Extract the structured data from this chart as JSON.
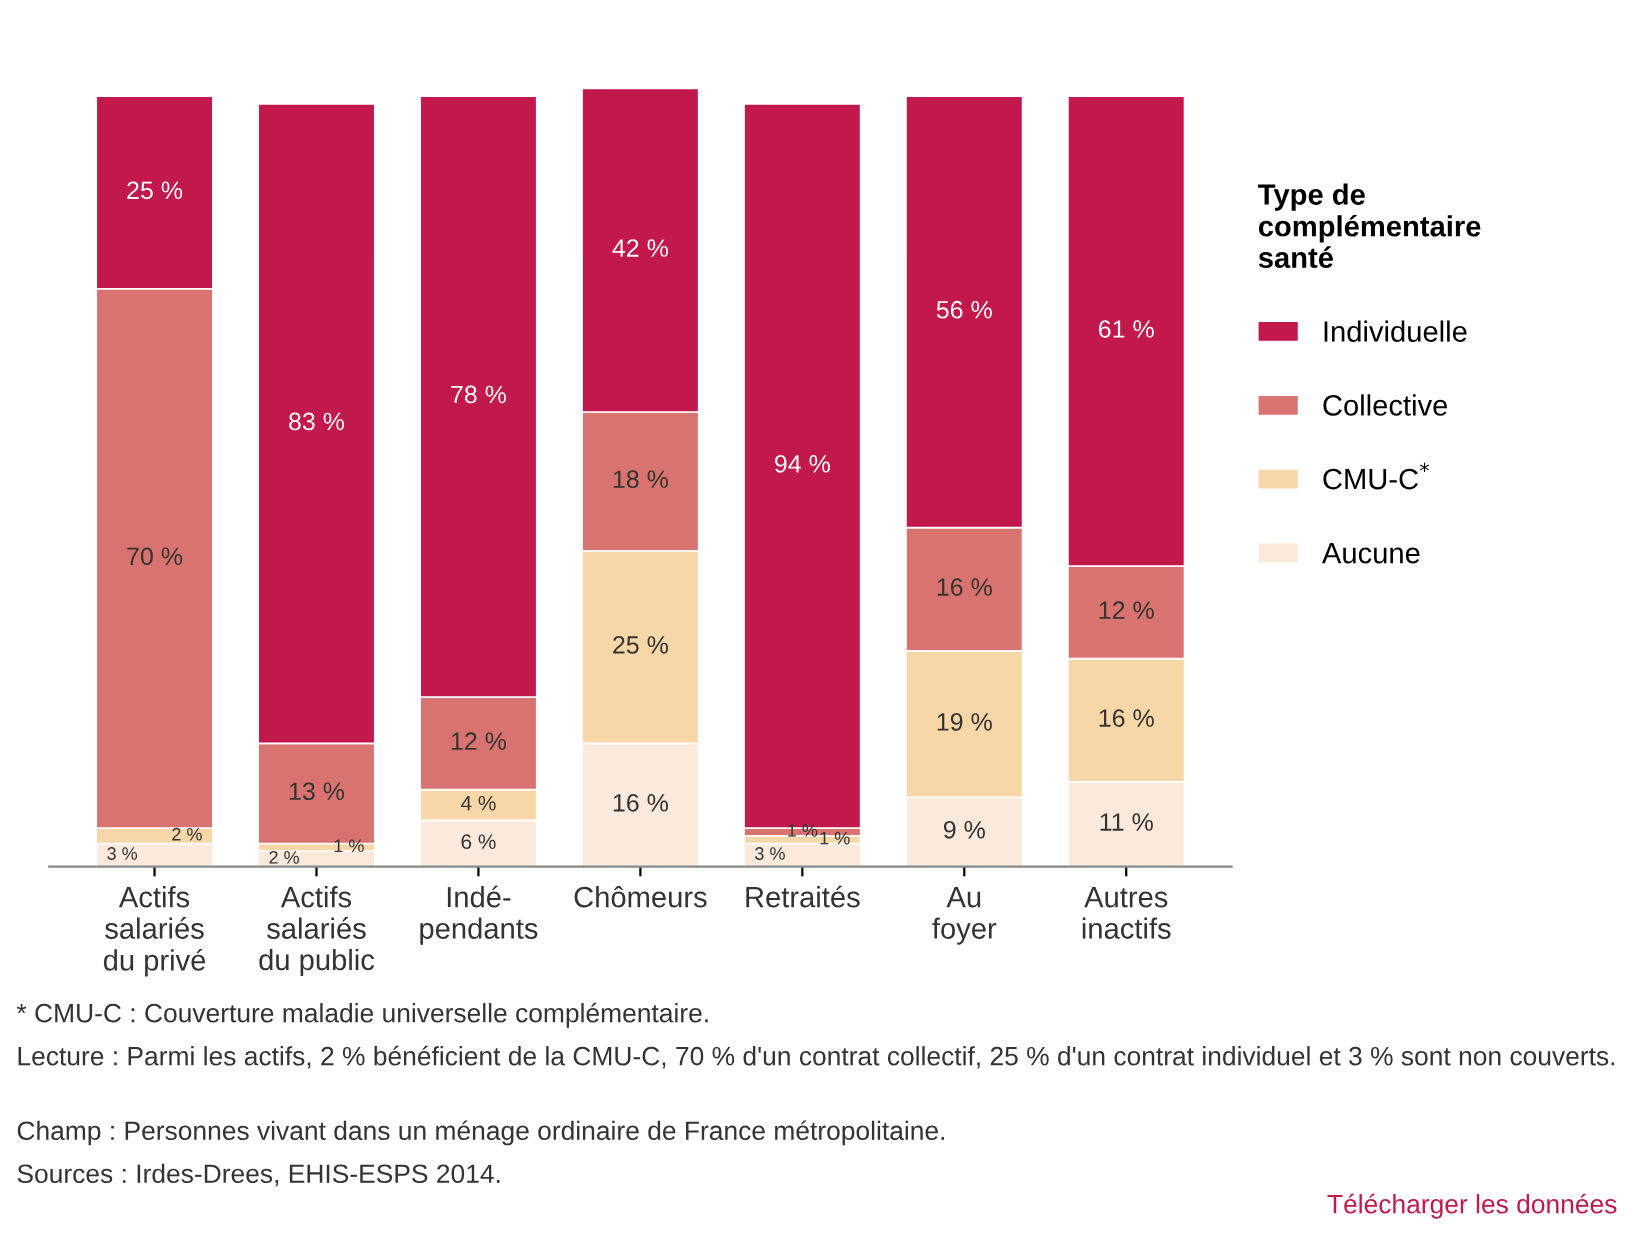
{
  "chart_data": {
    "type": "bar",
    "stacked": true,
    "legend": "right",
    "legend_title": "Type de\ncomplémentaire\nsanté",
    "tick_labels": "x",
    "categories": [
      "Actifs\nsalariés\ndu privé",
      "Actifs\nsalariés\ndu public",
      "Indé-\npendants",
      "Chômeurs",
      "Retraités",
      "Au\nfoyer",
      "Autres\ninactifs"
    ],
    "series": [
      {
        "name": "Aucune",
        "color": "#fbeadb",
        "values": [
          3,
          2,
          6,
          16,
          3,
          9,
          11
        ],
        "value_labels": [
          "3 %",
          "2 %",
          "6 %",
          "16 %",
          "3 %",
          "9 %",
          "11 %"
        ]
      },
      {
        "name": "CMU-C$^{*}$",
        "color": "#f7d6a8",
        "values": [
          2,
          1,
          4,
          25,
          1,
          19,
          16
        ],
        "value_labels": [
          "2 %",
          "1 %",
          "4 %",
          "25 %",
          "1 %",
          "19 %",
          "16 %"
        ]
      },
      {
        "name": "Collective",
        "color": "#d8736f",
        "values": [
          70,
          13,
          12,
          18,
          1,
          16,
          12
        ],
        "value_labels": [
          "70 %",
          "13 %",
          "12 %",
          "18 %",
          "1 %",
          "16 %",
          "12 %"
        ]
      },
      {
        "name": "Individuelle",
        "color": "#c2184c",
        "values": [
          25,
          83,
          78,
          42,
          94,
          56,
          61
        ],
        "value_labels": [
          "25 %",
          "83 %",
          "78 %",
          "42 %",
          "94 %",
          "56 %",
          "61 %"
        ]
      }
    ],
    "annotations": [
      "* CMU-C : Couverture maladie universelle complémentaire.",
      "Lecture : Parmi les actifs, 2 % bénéficient de la CMU-C, 70 % d'un contrat collectif, 25 % d'un contrat individuel et 3 % sont non couverts.",
      "Champ : Personnes vivant dans un ménage ordinaire de France métropolitaine.",
      "Sources : Irdes-Drees, EHIS-ESPS 2014.",
      "Télécharger les données"
    ]
  }
}
